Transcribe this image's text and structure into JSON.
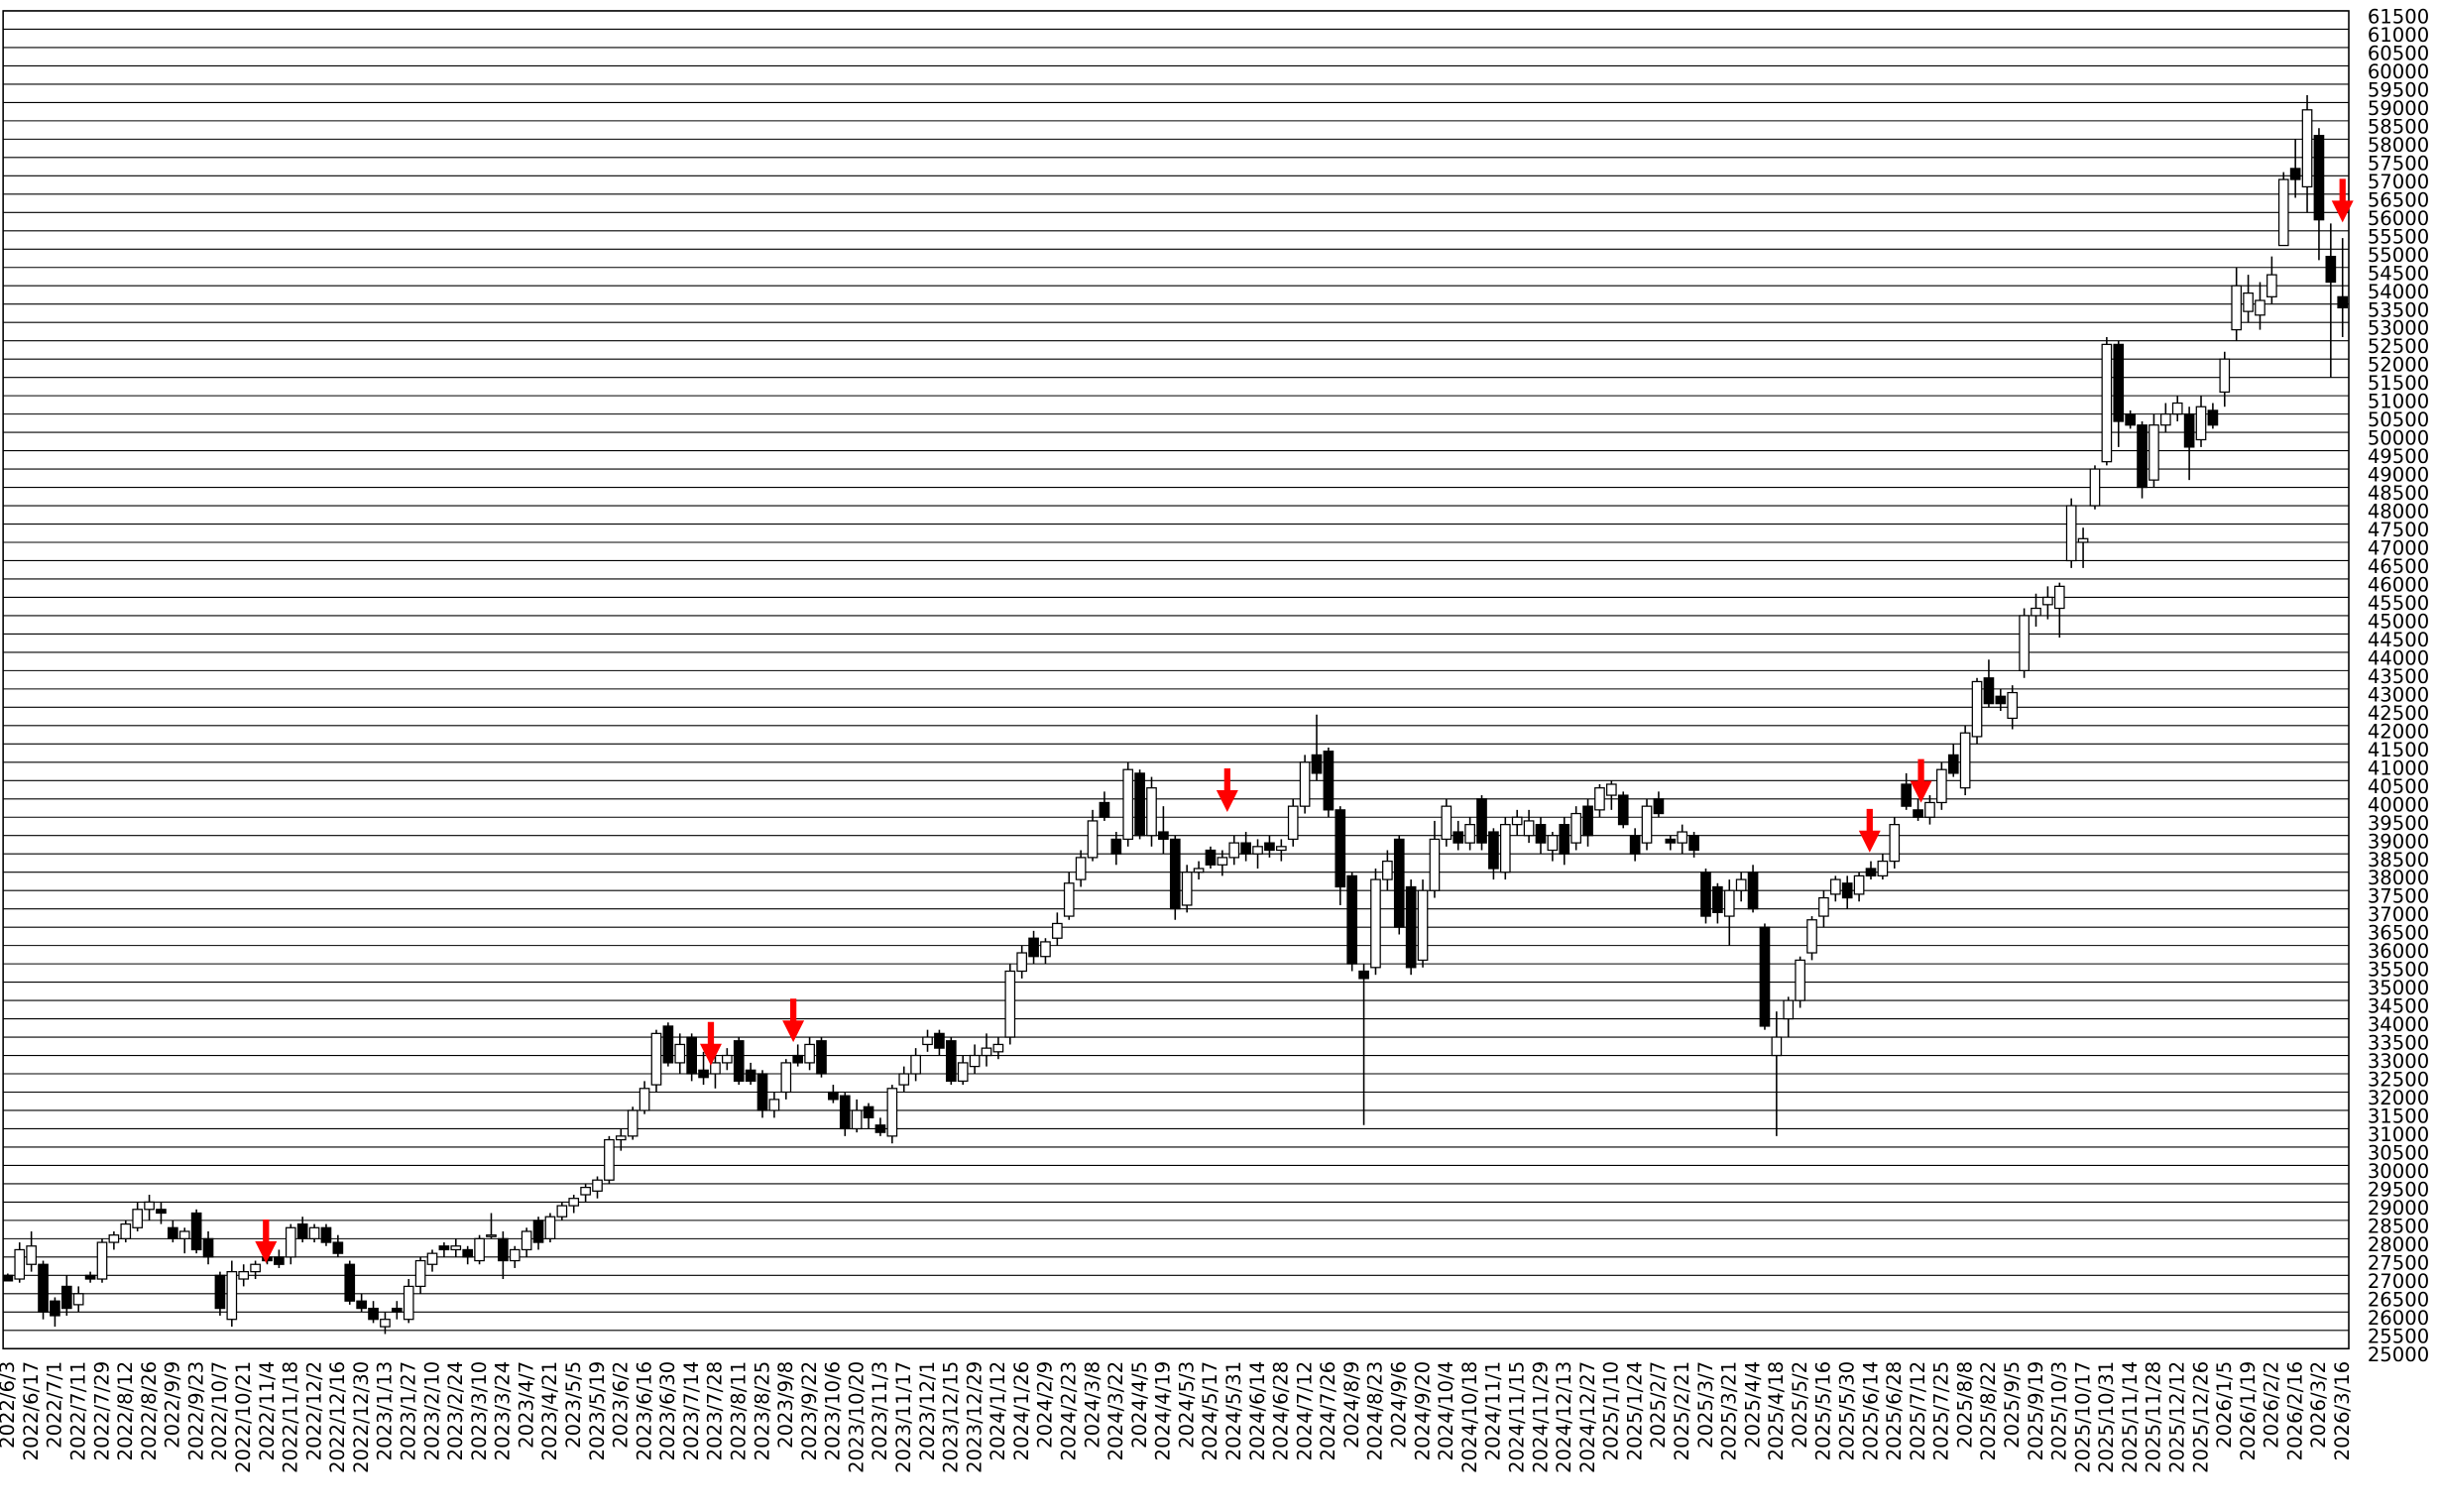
{
  "chart_data": {
    "type": "candlestick",
    "grid": true,
    "up_color": "#ffffff",
    "down_color": "#000000",
    "ylim": [
      25000,
      61500
    ],
    "yticks": [
      25000,
      25500,
      26000,
      26500,
      27000,
      27500,
      28000,
      28500,
      29000,
      29500,
      30000,
      30500,
      31000,
      31500,
      32000,
      32500,
      33000,
      33500,
      34000,
      34500,
      35000,
      35500,
      36000,
      36500,
      37000,
      37500,
      38000,
      38500,
      39000,
      39500,
      40000,
      40500,
      41000,
      41500,
      42000,
      42500,
      43000,
      43500,
      44000,
      44500,
      45000,
      45500,
      46000,
      46500,
      47000,
      47500,
      48000,
      48500,
      49000,
      49500,
      50000,
      50500,
      51000,
      51500,
      52000,
      52500,
      53000,
      53500,
      54000,
      54500,
      55000,
      55500,
      56000,
      56500,
      57000,
      57500,
      58000,
      58500,
      59000,
      59500,
      60000,
      60500,
      61000,
      61500
    ],
    "categories": [
      "2022/6/3",
      null,
      "2022/6/17",
      null,
      "2022/7/1",
      null,
      "2022/7/11",
      null,
      "2022/7/29",
      null,
      "2022/8/12",
      null,
      "2022/8/26",
      null,
      "2022/9/9",
      null,
      "2022/9/23",
      null,
      "2022/10/7",
      null,
      "2022/10/21",
      null,
      "2022/11/4",
      null,
      "2022/11/18",
      null,
      "2022/12/2",
      null,
      "2022/12/16",
      null,
      "2022/12/30",
      null,
      "2023/1/13",
      null,
      "2023/1/27",
      null,
      "2023/2/10",
      null,
      "2023/2/24",
      null,
      "2023/3/10",
      null,
      "2023/3/24",
      null,
      "2023/4/7",
      null,
      "2023/4/21",
      null,
      "2023/5/5",
      null,
      "2023/5/19",
      null,
      "2023/6/2",
      null,
      "2023/6/16",
      null,
      "2023/6/30",
      null,
      "2023/7/14",
      null,
      "2023/7/28",
      null,
      "2023/8/11",
      null,
      "2023/8/25",
      null,
      "2023/9/8",
      null,
      "2023/9/22",
      null,
      "2023/10/6",
      null,
      "2023/10/20",
      null,
      "2023/11/3",
      null,
      "2023/11/17",
      null,
      "2023/12/1",
      null,
      "2023/12/15",
      null,
      "2023/12/29",
      null,
      "2024/1/12",
      null,
      "2024/1/26",
      null,
      "2024/2/9",
      null,
      "2024/2/23",
      null,
      "2024/3/8",
      null,
      "2024/3/22",
      null,
      "2024/4/5",
      null,
      "2024/4/19",
      null,
      "2024/5/3",
      null,
      "2024/5/17",
      null,
      "2024/5/31",
      null,
      "2024/6/14",
      null,
      "2024/6/28",
      null,
      "2024/7/12",
      null,
      "2024/7/26",
      null,
      "2024/8/9",
      null,
      "2024/8/23",
      null,
      "2024/9/6",
      null,
      "2024/9/20",
      null,
      "2024/10/4",
      null,
      "2024/10/18",
      null,
      "2024/11/1",
      null,
      "2024/11/15",
      null,
      "2024/11/29",
      null,
      "2024/12/13",
      null,
      "2024/12/27",
      null,
      "2025/1/10",
      null,
      "2025/1/24",
      null,
      "2025/2/7",
      null,
      "2025/2/21",
      null,
      "2025/3/7",
      null,
      "2025/3/21",
      null,
      "2025/4/4",
      null,
      "2025/4/18",
      null,
      "2025/5/2",
      null,
      "2025/5/16",
      null,
      "2025/5/30",
      null,
      "2025/6/14",
      null,
      "2025/6/28",
      null,
      "2025/7/12",
      null,
      "2025/7/25",
      null,
      "2025/8/8",
      null,
      "2025/8/22",
      null,
      "2025/9/5",
      null,
      "2025/9/19",
      null,
      "2025/10/3",
      null,
      "2025/10/17",
      null,
      "2025/10/31",
      null,
      "2025/11/14",
      null,
      "2025/11/28",
      null,
      "2025/12/12",
      null,
      "2025/12/26",
      null,
      "2026/1/5",
      null,
      "2026/1/19",
      null,
      "2026/2/2",
      null,
      "2026/2/16",
      null,
      "2026/3/2",
      null,
      "2026/3/16"
    ],
    "open": [
      27000,
      26900,
      27300,
      27300,
      26300,
      26700,
      26200,
      27000,
      26900,
      27900,
      28000,
      28300,
      28800,
      28800,
      28300,
      28000,
      28700,
      28000,
      27000,
      25800,
      26900,
      27100,
      27500,
      27500,
      27500,
      28400,
      28000,
      28300,
      27900,
      27300,
      26300,
      26100,
      25600,
      26100,
      25800,
      26700,
      27300,
      27800,
      27700,
      27700,
      27400,
      28100,
      28000,
      27400,
      27700,
      28500,
      28000,
      28600,
      28900,
      29200,
      29300,
      29600,
      30700,
      30800,
      31500,
      32200,
      33800,
      32800,
      33500,
      32600,
      32500,
      32800,
      33400,
      32600,
      32500,
      31500,
      32000,
      33000,
      32800,
      33400,
      32000,
      31900,
      31000,
      31600,
      31100,
      30800,
      32200,
      32500,
      33300,
      33600,
      33400,
      32300,
      32700,
      33000,
      33100,
      33500,
      35300,
      36200,
      35700,
      36200,
      36800,
      37800,
      38400,
      39900,
      38900,
      38900,
      40700,
      39000,
      39100,
      38900,
      37100,
      38000,
      38600,
      38200,
      38400,
      38800,
      38500,
      38800,
      38600,
      38900,
      39800,
      41200,
      41300,
      39700,
      37900,
      35300,
      35400,
      37800,
      38900,
      37600,
      35600,
      37500,
      38900,
      39100,
      38800,
      40000,
      39100,
      38000,
      39300,
      39000,
      39300,
      38600,
      39300,
      38800,
      39800,
      39700,
      40100,
      40100,
      39000,
      38800,
      40000,
      38900,
      38800,
      39000,
      38000,
      37600,
      36800,
      37500,
      38000,
      36500,
      33000,
      34000,
      34500,
      35800,
      36800,
      37400,
      37700,
      37400,
      38100,
      37900,
      38300,
      40400,
      39700,
      39500,
      39900,
      41200,
      40300,
      41700,
      43300,
      42800,
      42200,
      43500,
      45000,
      45300,
      45200,
      46500,
      47000,
      48000,
      49200,
      52400,
      50500,
      50200,
      48700,
      50200,
      50500,
      50500,
      49800,
      50600,
      51100,
      52800,
      53300,
      53200,
      53700,
      55100,
      57200,
      56700,
      58100,
      54800,
      53700
    ],
    "high": [
      27050,
      27900,
      28200,
      27400,
      26400,
      27000,
      26700,
      27100,
      28000,
      28200,
      28500,
      29000,
      29200,
      29000,
      28500,
      28300,
      28800,
      28200,
      27100,
      27400,
      27300,
      27400,
      27700,
      27700,
      28400,
      28600,
      28400,
      28400,
      28100,
      27400,
      26500,
      26300,
      26000,
      26300,
      26900,
      27500,
      27700,
      27900,
      28000,
      27800,
      28100,
      28700,
      28200,
      27800,
      28300,
      28600,
      28700,
      29000,
      29200,
      29500,
      29700,
      30800,
      31000,
      31600,
      32300,
      33700,
      33900,
      33600,
      33600,
      33100,
      33000,
      33200,
      33500,
      32800,
      32600,
      32000,
      32900,
      33300,
      33500,
      33500,
      32200,
      32000,
      31800,
      31700,
      31300,
      32200,
      32700,
      33200,
      33700,
      33700,
      33500,
      33000,
      33300,
      33600,
      33500,
      35500,
      36000,
      36400,
      36200,
      36900,
      38000,
      38600,
      39700,
      40200,
      39100,
      41000,
      40800,
      40600,
      39800,
      39000,
      38200,
      38300,
      38700,
      38600,
      39000,
      39100,
      38900,
      39000,
      38900,
      40000,
      41200,
      42300,
      41400,
      39800,
      38000,
      35500,
      38100,
      38600,
      39000,
      37800,
      37800,
      39400,
      40000,
      39400,
      39500,
      40100,
      39200,
      39500,
      39700,
      39700,
      39500,
      39100,
      39500,
      39800,
      40000,
      40400,
      40500,
      40200,
      39200,
      40000,
      40200,
      39000,
      39300,
      39100,
      38100,
      37700,
      37800,
      38000,
      38200,
      36600,
      34200,
      34600,
      35700,
      36800,
      37500,
      37900,
      37900,
      38000,
      38300,
      38500,
      39500,
      40700,
      40000,
      40100,
      41000,
      41500,
      42000,
      43300,
      43800,
      43000,
      43100,
      45200,
      45600,
      45800,
      45900,
      48200,
      47400,
      49100,
      52600,
      52500,
      50600,
      50300,
      50500,
      50800,
      51000,
      50700,
      51000,
      50800,
      52200,
      54500,
      54300,
      54100,
      54800,
      57100,
      58000,
      59200,
      58300,
      55700,
      55300
    ],
    "low": [
      26850,
      26800,
      27100,
      25800,
      25600,
      25900,
      26000,
      26800,
      26800,
      27700,
      27900,
      28200,
      28500,
      28400,
      27900,
      27600,
      27600,
      27300,
      25900,
      25600,
      26700,
      26900,
      27300,
      27200,
      27300,
      27900,
      27900,
      27800,
      27500,
      26200,
      26000,
      25700,
      25400,
      25800,
      25700,
      26500,
      27100,
      27500,
      27500,
      27300,
      27300,
      28000,
      26900,
      27200,
      27500,
      27700,
      27900,
      28500,
      28700,
      29000,
      29100,
      29500,
      30400,
      30700,
      31400,
      32000,
      32700,
      32500,
      32300,
      32200,
      32100,
      32600,
      32200,
      32200,
      31300,
      31300,
      31800,
      32700,
      32600,
      32400,
      31700,
      30800,
      30900,
      31000,
      30800,
      30600,
      32000,
      32300,
      33100,
      33000,
      32200,
      32200,
      32500,
      32700,
      32900,
      33300,
      35100,
      35500,
      35500,
      36000,
      36700,
      37600,
      38300,
      39400,
      38200,
      38700,
      38900,
      38700,
      38500,
      36700,
      36900,
      37800,
      38100,
      37900,
      38200,
      38300,
      38100,
      38400,
      38300,
      38700,
      39600,
      40500,
      39500,
      37100,
      35300,
      31100,
      35200,
      37500,
      36300,
      35200,
      35400,
      37300,
      38700,
      38600,
      38600,
      38600,
      37800,
      37800,
      39000,
      38800,
      38500,
      38300,
      38200,
      38600,
      38700,
      39500,
      39700,
      39200,
      38300,
      38600,
      39500,
      38600,
      38500,
      38400,
      36600,
      36600,
      36000,
      37200,
      36900,
      33700,
      30800,
      33500,
      34300,
      35600,
      36500,
      37200,
      37000,
      37200,
      37800,
      37800,
      38100,
      39700,
      39400,
      39300,
      39700,
      40600,
      40100,
      41500,
      42500,
      42400,
      41900,
      43300,
      44700,
      44900,
      44400,
      46300,
      46300,
      47900,
      49100,
      49600,
      50100,
      48200,
      48500,
      50000,
      50300,
      48700,
      49600,
      50100,
      50700,
      52500,
      53000,
      52800,
      53500,
      55100,
      56400,
      56000,
      54700,
      51500,
      52600
    ],
    "close": [
      26850,
      27700,
      27800,
      26000,
      25900,
      26100,
      26500,
      26900,
      27900,
      28100,
      28400,
      28800,
      29000,
      28700,
      28000,
      28200,
      27700,
      27500,
      26100,
      27100,
      27100,
      27300,
      27400,
      27300,
      28300,
      28000,
      28300,
      27900,
      27600,
      26300,
      26100,
      25800,
      25800,
      26000,
      26700,
      27400,
      27600,
      27700,
      27800,
      27500,
      28000,
      28100,
      27400,
      27700,
      28200,
      27900,
      28600,
      28900,
      29100,
      29400,
      29600,
      30700,
      30800,
      31500,
      32100,
      33600,
      32800,
      33300,
      32500,
      32400,
      32800,
      33000,
      32300,
      32300,
      31500,
      31800,
      32800,
      32800,
      33300,
      32500,
      31800,
      31000,
      31500,
      31300,
      30900,
      32100,
      32500,
      33000,
      33500,
      33200,
      32300,
      32800,
      33000,
      33200,
      33300,
      35300,
      35800,
      35700,
      36100,
      36600,
      37700,
      38400,
      39400,
      39500,
      38500,
      40800,
      39000,
      40300,
      38900,
      37000,
      38000,
      38100,
      38200,
      38400,
      38800,
      38500,
      38700,
      38600,
      38700,
      39800,
      41000,
      40700,
      39700,
      37600,
      35500,
      35100,
      37800,
      38300,
      36500,
      35400,
      37500,
      38900,
      39800,
      38800,
      39300,
      38800,
      38100,
      39300,
      39500,
      39400,
      38800,
      39000,
      38500,
      39600,
      39000,
      40300,
      40400,
      39300,
      38500,
      39800,
      39600,
      38800,
      39100,
      38600,
      36800,
      36900,
      37500,
      37800,
      37000,
      33800,
      33500,
      34500,
      35600,
      36700,
      37300,
      37800,
      37300,
      37900,
      37900,
      38300,
      39300,
      39800,
      39500,
      39900,
      40800,
      40700,
      41800,
      43200,
      42600,
      42600,
      42900,
      45000,
      45200,
      45500,
      45800,
      48000,
      47100,
      49000,
      52400,
      50300,
      50200,
      48500,
      50200,
      50500,
      50800,
      49600,
      50700,
      50200,
      52000,
      54000,
      53800,
      53600,
      54300,
      56900,
      56900,
      58800,
      55800,
      54100,
      53400
    ]
  }
}
